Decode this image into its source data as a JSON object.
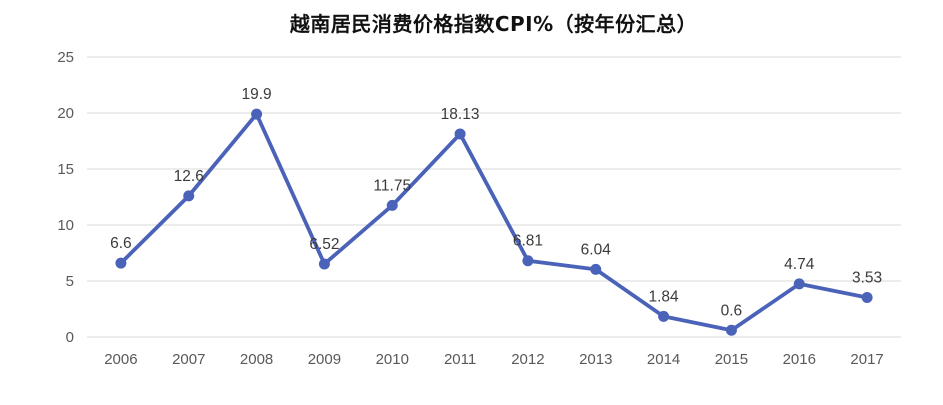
{
  "title": "越南居民消费价格指数CPI%（按年份汇总）",
  "chart_data": {
    "type": "line",
    "title": "越南居民消费价格指数CPI%（按年份汇总）",
    "categories": [
      "2006",
      "2007",
      "2008",
      "2009",
      "2010",
      "2011",
      "2012",
      "2013",
      "2014",
      "2015",
      "2016",
      "2017"
    ],
    "values": [
      6.6,
      12.6,
      19.9,
      6.52,
      11.75,
      18.13,
      6.81,
      6.04,
      1.84,
      0.6,
      4.74,
      3.53
    ],
    "data_labels": [
      "6.6",
      "12.6",
      "19.9",
      "6.52",
      "11.75",
      "18.13",
      "6.81",
      "6.04",
      "1.84",
      "0.6",
      "4.74",
      "3.53"
    ],
    "xlabel": "",
    "ylabel": "",
    "ylim": [
      0,
      25
    ],
    "yticks": [
      0,
      5,
      10,
      15,
      20,
      25
    ],
    "ytick_labels": [
      "0",
      "5",
      "10",
      "15",
      "20",
      "25"
    ],
    "grid": true,
    "legend": "none",
    "colors": {
      "line": "#4A62B8",
      "marker": "#4A62B8",
      "gridline": "#D9D9D9",
      "axis_text": "#595959",
      "data_label_text": "#3b3b3b",
      "title_text": "#111111",
      "background": "#ffffff"
    }
  }
}
